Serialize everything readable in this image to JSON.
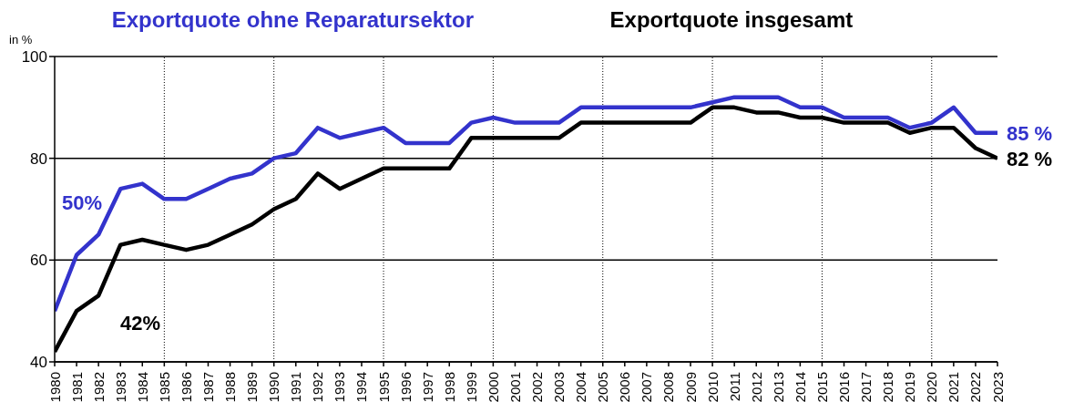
{
  "chart_data": {
    "type": "line",
    "ylabel": "in %",
    "x": [
      1980,
      1981,
      1982,
      1983,
      1984,
      1985,
      1986,
      1987,
      1988,
      1989,
      1990,
      1991,
      1992,
      1993,
      1994,
      1995,
      1996,
      1997,
      1998,
      1999,
      2000,
      2001,
      2002,
      2003,
      2004,
      2005,
      2006,
      2007,
      2008,
      2009,
      2010,
      2011,
      2012,
      2013,
      2014,
      2015,
      2016,
      2017,
      2018,
      2019,
      2020,
      2021,
      2022,
      2023
    ],
    "xlim": [
      1980,
      2023
    ],
    "xticks": [
      1980,
      1981,
      1982,
      1983,
      1984,
      1985,
      1986,
      1987,
      1988,
      1989,
      1990,
      1991,
      1992,
      1993,
      1994,
      1995,
      1996,
      1997,
      1998,
      1999,
      2000,
      2001,
      2002,
      2003,
      2004,
      2005,
      2006,
      2007,
      2008,
      2009,
      2010,
      2011,
      2012,
      2013,
      2014,
      2015,
      2016,
      2017,
      2018,
      2019,
      2020,
      2021,
      2022,
      2023
    ],
    "ylim": [
      40,
      100
    ],
    "yticks": [
      40,
      60,
      80,
      100
    ],
    "series": [
      {
        "name": "Exportquote ohne Reparatursektor",
        "color": "#3333cc",
        "values": [
          50,
          61,
          65,
          74,
          75,
          72,
          72,
          74,
          76,
          77,
          80,
          81,
          86,
          84,
          85,
          86,
          83,
          83,
          83,
          87,
          88,
          87,
          87,
          87,
          90,
          90,
          90,
          90,
          90,
          90,
          91,
          92,
          92,
          92,
          90,
          90,
          88,
          88,
          88,
          86,
          87,
          90,
          85,
          85
        ]
      },
      {
        "name": "Exportquote insgesamt",
        "color": "#000000",
        "values": [
          42,
          50,
          53,
          63,
          64,
          63,
          62,
          63,
          65,
          67,
          70,
          72,
          77,
          74,
          76,
          78,
          78,
          78,
          78,
          84,
          84,
          84,
          84,
          84,
          87,
          87,
          87,
          87,
          87,
          87,
          90,
          90,
          89,
          89,
          88,
          88,
          87,
          87,
          87,
          85,
          86,
          86,
          82,
          80
        ]
      }
    ],
    "annotations": [
      "50%",
      "42%",
      {
        "text": "85 %",
        "x": 2023,
        "y": 85
      },
      {
        "text": "82 %",
        "x": 2023,
        "y": 80
      }
    ],
    "ref_lines": [
      {
        "axis": "x",
        "value": 1985,
        "line_style": "dotted"
      },
      {
        "axis": "x",
        "value": 1990,
        "line_style": "dotted"
      },
      {
        "axis": "x",
        "value": 1995,
        "line_style": "dotted"
      },
      {
        "axis": "x",
        "value": 2000,
        "line_style": "dotted"
      },
      {
        "axis": "x",
        "value": 2005,
        "line_style": "dotted"
      },
      {
        "axis": "x",
        "value": 2010,
        "line_style": "dotted"
      },
      {
        "axis": "x",
        "value": 2015,
        "line_style": "dotted"
      },
      {
        "axis": "x",
        "value": 2020,
        "line_style": "dotted"
      }
    ],
    "grid": "y",
    "legend": "top",
    "marker": "none",
    "line_style": "solid"
  }
}
